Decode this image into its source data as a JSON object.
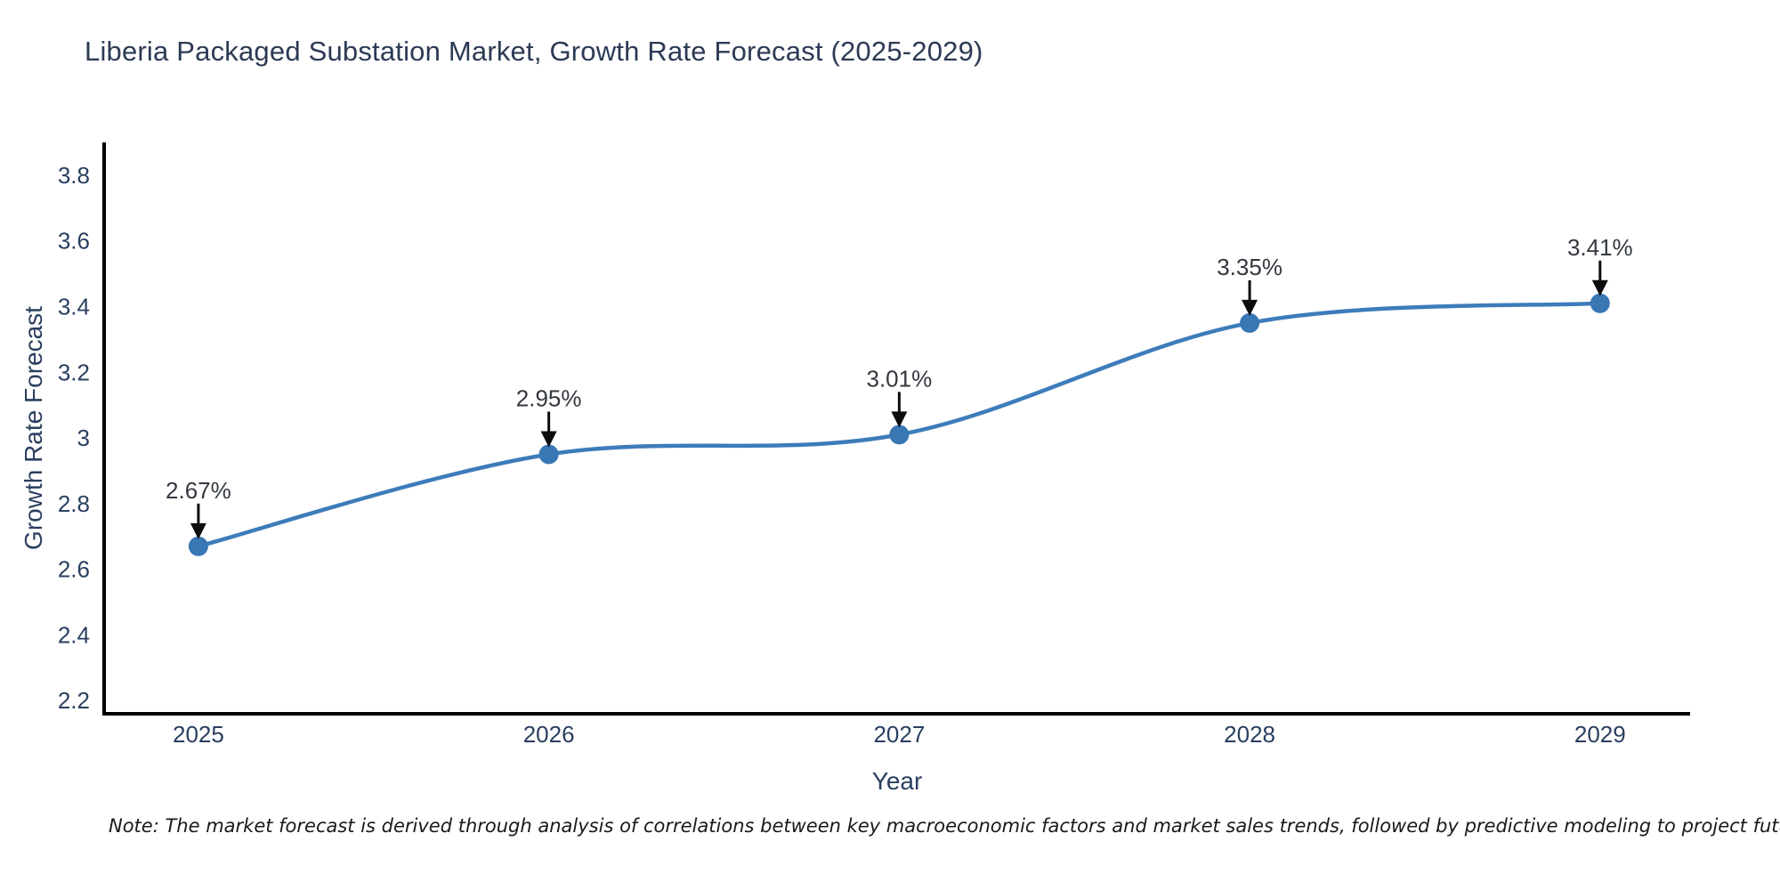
{
  "chart_data": {
    "type": "line",
    "title": "Liberia Packaged Substation Market, Growth Rate Forecast (2025-2029)",
    "xlabel": "Year",
    "ylabel": "Growth Rate Forecast",
    "x": [
      2025,
      2026,
      2027,
      2028,
      2029
    ],
    "series": [
      {
        "name": "Growth Rate Forecast",
        "values": [
          2.67,
          2.95,
          3.01,
          3.35,
          3.41
        ],
        "point_labels": [
          "2.67%",
          "2.95%",
          "3.01%",
          "3.35%",
          "3.41%"
        ]
      }
    ],
    "line_shape": "spline",
    "markers": true,
    "grid": false,
    "legend": "none",
    "annotation_arrows": true,
    "xtick_labels": [
      "2025",
      "2026",
      "2027",
      "2028",
      "2029"
    ],
    "yticks": [
      2.2,
      2.4,
      2.6,
      2.8,
      3,
      3.2,
      3.4,
      3.6,
      3.8
    ],
    "ytick_labels": [
      "2.2",
      "2.4",
      "2.6",
      "2.8",
      "3",
      "3.2",
      "3.4",
      "3.6",
      "3.8"
    ],
    "xlim": [
      2024.731,
      2029.257
    ],
    "ylim": [
      2.16,
      3.9
    ]
  },
  "note": "Note: The market forecast is derived through analysis of correlations between key macroeconomic factors and market sales trends, followed by predictive modeling to project future sales",
  "colors": {
    "line": "#3d7cba",
    "marker": "#3876b4",
    "axis_line": "#000000",
    "tick_text": "#2a3f5f",
    "title_text": "#2c3a54",
    "axis_title_text": "#2a3f5f",
    "annotation_text": "#33383f",
    "arrow": "#0d0d0d",
    "note_text": "#1a1a1a",
    "background": "#ffffff"
  }
}
